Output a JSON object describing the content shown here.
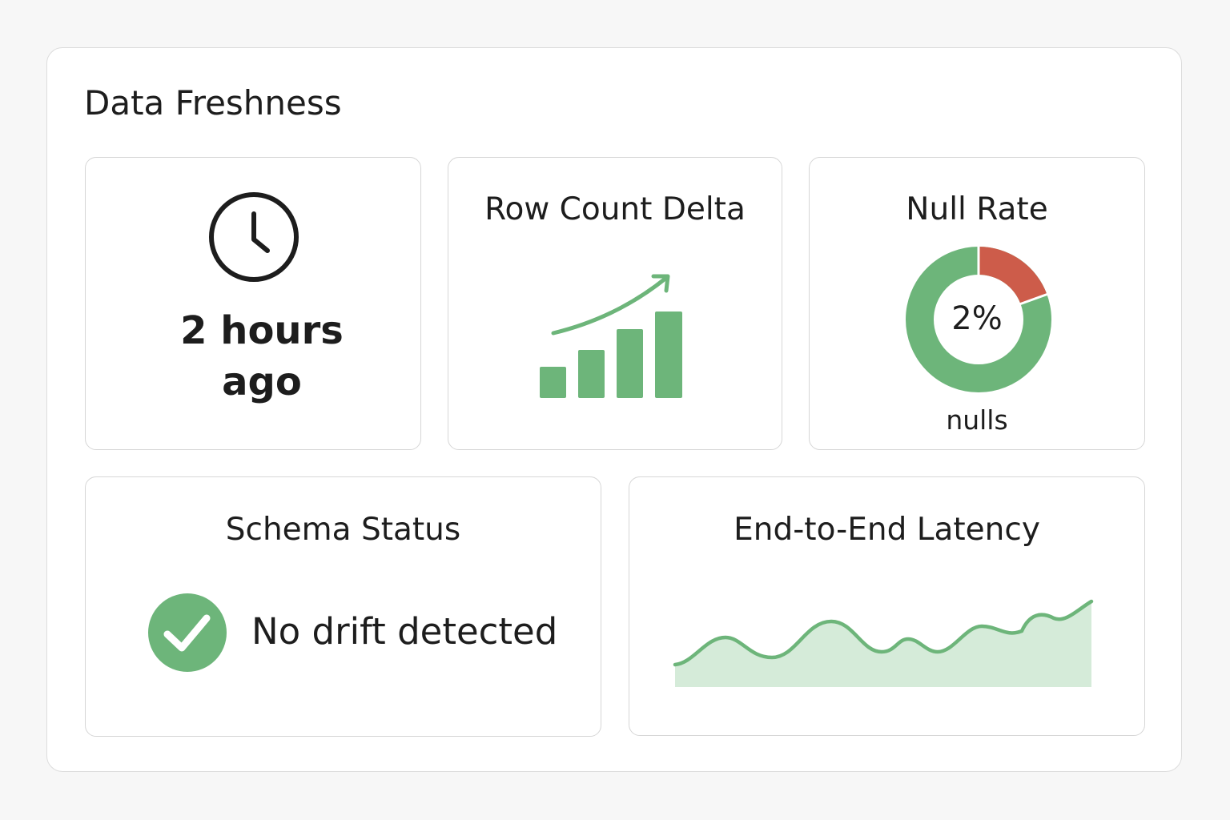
{
  "header": {
    "title": "Data Freshness"
  },
  "cards": [
    {
      "value": "2 hours ago"
    },
    {
      "title": "Row Count Delta"
    },
    {
      "title": "Null Rate",
      "value": "2%",
      "caption": "nulls"
    },
    {
      "title": "Schema Status",
      "status": "No drift detected"
    },
    {
      "title": "End-to-End Latency"
    }
  ]
}
